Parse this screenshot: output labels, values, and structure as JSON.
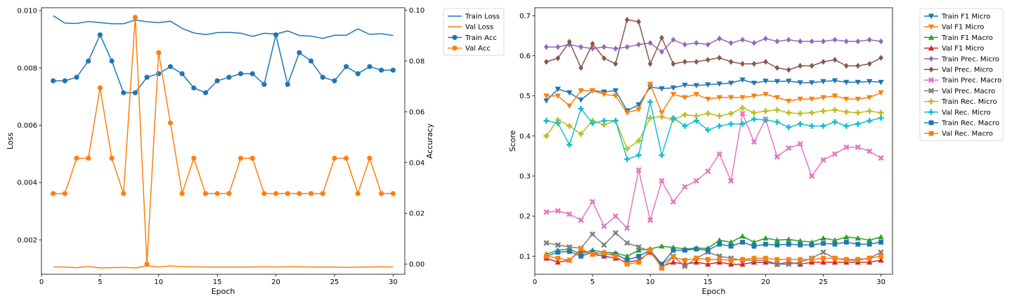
{
  "chart_data": [
    {
      "type": "line",
      "xlabel": "Epoch",
      "ylabel": "Loss",
      "ylabel_right": "Accuracy",
      "xlim": [
        0,
        31
      ],
      "ylim": [
        0.0008,
        0.0101
      ],
      "ylim_right": [
        -0.004,
        0.101
      ],
      "x_ticks": [
        0,
        5,
        10,
        15,
        20,
        25,
        30
      ],
      "y_ticks": [
        0.002,
        0.004,
        0.006,
        0.008,
        0.01
      ],
      "y_tick_labels": [
        "0.002",
        "0.004",
        "0.006",
        "0.008",
        "0.010"
      ],
      "y_ticks_right": [
        0.0,
        0.02,
        0.04,
        0.06,
        0.08,
        0.1
      ],
      "y_tick_labels_right": [
        "0.00",
        "0.02",
        "0.04",
        "0.06",
        "0.08",
        "0.10"
      ],
      "legend_position": "outside-right",
      "x": [
        1,
        2,
        3,
        4,
        5,
        6,
        7,
        8,
        9,
        10,
        11,
        12,
        13,
        14,
        15,
        16,
        17,
        18,
        19,
        20,
        21,
        22,
        23,
        24,
        25,
        26,
        27,
        28,
        29,
        30
      ],
      "series": [
        {
          "name": "Train Loss",
          "axis": "left",
          "color": "#1f77b4",
          "marker": "none",
          "values": [
            0.00982,
            0.00956,
            0.00955,
            0.00962,
            0.00958,
            0.00954,
            0.00954,
            0.00967,
            0.00961,
            0.00958,
            0.00963,
            0.00938,
            0.00922,
            0.00916,
            0.00923,
            0.00924,
            0.00921,
            0.0091,
            0.00921,
            0.00918,
            0.00929,
            0.00913,
            0.00911,
            0.00903,
            0.00914,
            0.00914,
            0.00936,
            0.00917,
            0.00919,
            0.00913
          ]
        },
        {
          "name": "Val Loss",
          "axis": "left",
          "color": "#ff7f0e",
          "marker": "none",
          "values": [
            0.00106,
            0.00105,
            0.00103,
            0.00107,
            0.00102,
            0.00103,
            0.00104,
            0.00102,
            0.00109,
            0.00105,
            0.00109,
            0.00106,
            0.00106,
            0.00105,
            0.00105,
            0.00105,
            0.00105,
            0.00105,
            0.00106,
            0.00105,
            0.00106,
            0.00106,
            0.00105,
            0.00105,
            0.00105,
            0.00104,
            0.00105,
            0.00105,
            0.00106,
            0.00105
          ]
        },
        {
          "name": "Train Acc",
          "axis": "right",
          "color": "#1f77b4",
          "marker": "circle",
          "values": [
            0.0722,
            0.0722,
            0.0736,
            0.08,
            0.0903,
            0.08,
            0.0675,
            0.0675,
            0.0736,
            0.075,
            0.0778,
            0.075,
            0.0694,
            0.0675,
            0.0722,
            0.0736,
            0.075,
            0.075,
            0.0708,
            0.0903,
            0.0708,
            0.0833,
            0.08,
            0.0736,
            0.0722,
            0.0778,
            0.075,
            0.0778,
            0.0764,
            0.0764
          ]
        },
        {
          "name": "Val Acc",
          "axis": "right",
          "color": "#ff7f0e",
          "marker": "circle",
          "values": [
            0.0278,
            0.0278,
            0.0417,
            0.0417,
            0.0694,
            0.0417,
            0.0278,
            0.0972,
            0.0,
            0.0833,
            0.0556,
            0.0278,
            0.0417,
            0.0278,
            0.0278,
            0.0278,
            0.0417,
            0.0417,
            0.0278,
            0.0278,
            0.0278,
            0.0278,
            0.0278,
            0.0278,
            0.0417,
            0.0417,
            0.0278,
            0.0417,
            0.0278,
            0.0278
          ]
        }
      ]
    },
    {
      "type": "line",
      "xlabel": "Epoch",
      "ylabel": "Score",
      "xlim": [
        0,
        31
      ],
      "ylim": [
        0.055,
        0.72
      ],
      "x_ticks": [
        0,
        5,
        10,
        15,
        20,
        25,
        30
      ],
      "y_ticks": [
        0.1,
        0.2,
        0.3,
        0.4,
        0.5,
        0.6,
        0.7
      ],
      "y_tick_labels": [
        "0.1",
        "0.2",
        "0.3",
        "0.4",
        "0.5",
        "0.6",
        "0.7"
      ],
      "legend_position": "outside-right",
      "x": [
        1,
        2,
        3,
        4,
        5,
        6,
        7,
        8,
        9,
        10,
        11,
        12,
        13,
        14,
        15,
        16,
        17,
        18,
        19,
        20,
        21,
        22,
        23,
        24,
        25,
        26,
        27,
        28,
        29,
        30
      ],
      "series": [
        {
          "name": "Train F1 Micro",
          "color": "#1f77b4",
          "marker": "tri_down",
          "values": [
            0.488,
            0.517,
            0.508,
            0.49,
            0.513,
            0.51,
            0.513,
            0.463,
            0.478,
            0.522,
            0.518,
            0.52,
            0.527,
            0.526,
            0.528,
            0.53,
            0.532,
            0.54,
            0.532,
            0.537,
            0.536,
            0.537,
            0.533,
            0.533,
            0.536,
            0.538,
            0.534,
            0.534,
            0.536,
            0.534
          ]
        },
        {
          "name": "Val F1 Micro",
          "color": "#ff7f0e",
          "marker": "tri_down",
          "values": [
            0.5,
            0.5,
            0.475,
            0.513,
            0.513,
            0.504,
            0.5,
            0.458,
            0.466,
            0.529,
            0.458,
            0.504,
            0.496,
            0.504,
            0.492,
            0.496,
            0.496,
            0.496,
            0.5,
            0.504,
            0.496,
            0.487,
            0.492,
            0.492,
            0.496,
            0.5,
            0.492,
            0.492,
            0.496,
            0.508
          ]
        },
        {
          "name": "Train F1 Macro",
          "color": "#2ca02c",
          "marker": "tri_up",
          "values": [
            0.105,
            0.115,
            0.118,
            0.105,
            0.115,
            0.11,
            0.108,
            0.1,
            0.115,
            0.118,
            0.125,
            0.122,
            0.118,
            0.12,
            0.12,
            0.14,
            0.135,
            0.15,
            0.135,
            0.145,
            0.14,
            0.142,
            0.138,
            0.135,
            0.145,
            0.14,
            0.148,
            0.145,
            0.14,
            0.148
          ]
        },
        {
          "name": "Val F1 Micro",
          "color": "#d62728",
          "marker": "tri_up",
          "values": [
            0.095,
            0.085,
            0.09,
            0.115,
            0.105,
            0.1,
            0.095,
            0.085,
            0.09,
            0.11,
            0.075,
            0.085,
            0.08,
            0.085,
            0.08,
            0.085,
            0.08,
            0.08,
            0.085,
            0.085,
            0.08,
            0.085,
            0.08,
            0.085,
            0.085,
            0.085,
            0.085,
            0.085,
            0.085,
            0.09
          ]
        },
        {
          "name": "Train Prec. Micro",
          "color": "#9467bd",
          "marker": "diamond",
          "values": [
            0.622,
            0.622,
            0.628,
            0.622,
            0.618,
            0.622,
            0.618,
            0.622,
            0.628,
            0.632,
            0.61,
            0.64,
            0.628,
            0.632,
            0.628,
            0.643,
            0.632,
            0.64,
            0.632,
            0.643,
            0.636,
            0.64,
            0.636,
            0.636,
            0.636,
            0.64,
            0.636,
            0.636,
            0.64,
            0.636
          ]
        },
        {
          "name": "Val Prec. Micro",
          "color": "#8c564b",
          "marker": "diamond",
          "values": [
            0.585,
            0.594,
            0.635,
            0.57,
            0.63,
            0.594,
            0.58,
            0.69,
            0.685,
            0.58,
            0.645,
            0.58,
            0.585,
            0.585,
            0.59,
            0.595,
            0.585,
            0.58,
            0.58,
            0.585,
            0.57,
            0.565,
            0.575,
            0.575,
            0.585,
            0.59,
            0.575,
            0.575,
            0.58,
            0.595
          ]
        },
        {
          "name": "Train Prec. Macro",
          "color": "#e377c2",
          "marker": "x",
          "values": [
            0.21,
            0.213,
            0.205,
            0.19,
            0.236,
            0.175,
            0.2,
            0.17,
            0.315,
            0.19,
            0.288,
            0.236,
            0.273,
            0.288,
            0.312,
            0.355,
            0.288,
            0.456,
            0.385,
            0.442,
            0.348,
            0.37,
            0.38,
            0.3,
            0.34,
            0.355,
            0.372,
            0.372,
            0.362,
            0.345
          ]
        },
        {
          "name": "Val Prec. Macro",
          "color": "#7f7f7f",
          "marker": "x",
          "values": [
            0.133,
            0.128,
            0.123,
            0.12,
            0.155,
            0.128,
            0.158,
            0.133,
            0.123,
            0.113,
            0.08,
            0.1,
            0.075,
            0.095,
            0.11,
            0.1,
            0.095,
            0.09,
            0.09,
            0.09,
            0.08,
            0.08,
            0.085,
            0.095,
            0.11,
            0.095,
            0.09,
            0.09,
            0.095,
            0.11
          ]
        },
        {
          "name": "Train Rec. Micro",
          "color": "#bcbd22",
          "marker": "plus",
          "values": [
            0.4,
            0.44,
            0.425,
            0.405,
            0.438,
            0.428,
            0.438,
            0.368,
            0.388,
            0.445,
            0.448,
            0.44,
            0.453,
            0.45,
            0.456,
            0.45,
            0.456,
            0.47,
            0.458,
            0.462,
            0.465,
            0.458,
            0.456,
            0.458,
            0.462,
            0.465,
            0.46,
            0.458,
            0.462,
            0.458
          ]
        },
        {
          "name": "Val Rec. Micro",
          "color": "#17becf",
          "marker": "plus",
          "values": [
            0.438,
            0.432,
            0.378,
            0.468,
            0.432,
            0.438,
            0.438,
            0.342,
            0.352,
            0.485,
            0.352,
            0.445,
            0.425,
            0.438,
            0.415,
            0.425,
            0.43,
            0.43,
            0.442,
            0.44,
            0.435,
            0.422,
            0.43,
            0.425,
            0.425,
            0.435,
            0.425,
            0.43,
            0.438,
            0.445
          ]
        },
        {
          "name": "Train Rec. Macro",
          "color": "#1f77b4",
          "marker": "square",
          "values": [
            0.1,
            0.11,
            0.112,
            0.1,
            0.11,
            0.105,
            0.105,
            0.09,
            0.1,
            0.115,
            0.08,
            0.115,
            0.115,
            0.118,
            0.115,
            0.13,
            0.125,
            0.135,
            0.125,
            0.13,
            0.128,
            0.13,
            0.128,
            0.128,
            0.132,
            0.13,
            0.135,
            0.13,
            0.13,
            0.135
          ]
        },
        {
          "name": "Val Rec. Macro",
          "color": "#ff7f0e",
          "marker": "square",
          "values": [
            0.1,
            0.095,
            0.09,
            0.118,
            0.105,
            0.108,
            0.1,
            0.08,
            0.085,
            0.115,
            0.07,
            0.098,
            0.09,
            0.095,
            0.092,
            0.092,
            0.09,
            0.092,
            0.095,
            0.095,
            0.092,
            0.092,
            0.092,
            0.092,
            0.095,
            0.095,
            0.092,
            0.092,
            0.095,
            0.1
          ]
        }
      ]
    }
  ]
}
